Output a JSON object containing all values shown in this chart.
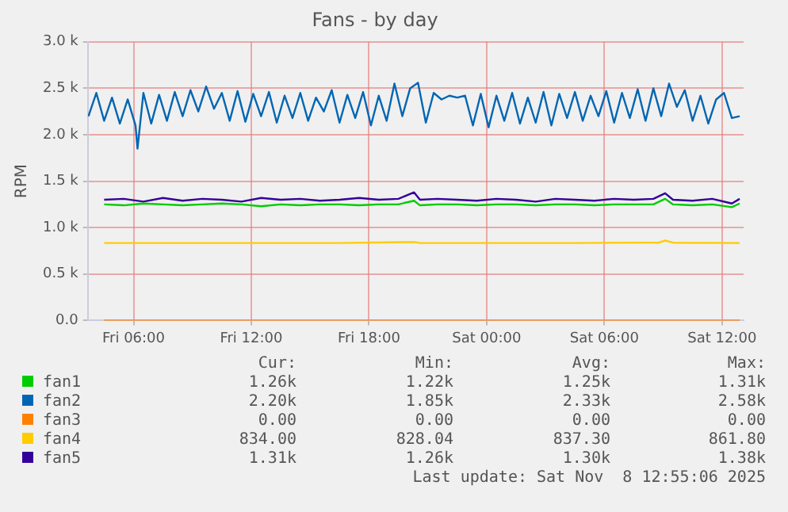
{
  "chart_data": {
    "type": "line",
    "title": "Fans - by day",
    "ylabel": "RPM",
    "xlim": [
      "2025-11-07T03:40",
      "2025-11-08T13:06"
    ],
    "xticks": [
      {
        "value": "2025-11-07T06:00",
        "label": "Fri 06:00"
      },
      {
        "value": "2025-11-07T12:00",
        "label": "Fri 12:00"
      },
      {
        "value": "2025-11-07T18:00",
        "label": "Fri 18:00"
      },
      {
        "value": "2025-11-08T00:00",
        "label": "Sat 00:00"
      },
      {
        "value": "2025-11-08T06:00",
        "label": "Sat 06:00"
      },
      {
        "value": "2025-11-08T12:00",
        "label": "Sat 12:00"
      }
    ],
    "ylim": [
      0,
      3000
    ],
    "yticks": [
      {
        "value": 0,
        "label": "0.0"
      },
      {
        "value": 500,
        "label": "0.5 k"
      },
      {
        "value": 1000,
        "label": "1.0 k"
      },
      {
        "value": 1500,
        "label": "1.5 k"
      },
      {
        "value": 2000,
        "label": "2.0 k"
      },
      {
        "value": 2500,
        "label": "2.5 k"
      },
      {
        "value": 3000,
        "label": "3.0 k"
      }
    ],
    "grid": true,
    "legend": "bottom",
    "line_style": "solid",
    "x": [
      "2025-11-07T04:30",
      "2025-11-07T05:30",
      "2025-11-07T06:30",
      "2025-11-07T07:30",
      "2025-11-07T08:30",
      "2025-11-07T09:30",
      "2025-11-07T10:30",
      "2025-11-07T11:30",
      "2025-11-07T12:30",
      "2025-11-07T13:30",
      "2025-11-07T14:30",
      "2025-11-07T15:30",
      "2025-11-07T16:30",
      "2025-11-07T17:30",
      "2025-11-07T18:30",
      "2025-11-07T19:30",
      "2025-11-07T20:18",
      "2025-11-07T20:36",
      "2025-11-07T21:30",
      "2025-11-07T22:30",
      "2025-11-07T23:30",
      "2025-11-08T00:30",
      "2025-11-08T01:30",
      "2025-11-08T02:30",
      "2025-11-08T03:30",
      "2025-11-08T04:30",
      "2025-11-08T05:30",
      "2025-11-08T06:30",
      "2025-11-08T07:30",
      "2025-11-08T08:30",
      "2025-11-08T09:06",
      "2025-11-08T09:30",
      "2025-11-08T10:30",
      "2025-11-08T11:30",
      "2025-11-08T12:30",
      "2025-11-08T12:54"
    ],
    "series": [
      {
        "name": "fan1",
        "color": "#00cc00",
        "values": [
          1250,
          1240,
          1260,
          1250,
          1240,
          1250,
          1260,
          1250,
          1230,
          1250,
          1240,
          1250,
          1250,
          1240,
          1250,
          1250,
          1290,
          1240,
          1250,
          1250,
          1240,
          1250,
          1250,
          1240,
          1250,
          1250,
          1240,
          1250,
          1250,
          1250,
          1310,
          1250,
          1240,
          1250,
          1220,
          1260
        ]
      },
      {
        "name": "fan2",
        "color": "#0066b3",
        "x": [
          "2025-11-07T03:42",
          "2025-11-07T04:06",
          "2025-11-07T04:30",
          "2025-11-07T04:54",
          "2025-11-07T05:18",
          "2025-11-07T05:42",
          "2025-11-07T06:06",
          "2025-11-07T06:12",
          "2025-11-07T06:30",
          "2025-11-07T06:54",
          "2025-11-07T07:18",
          "2025-11-07T07:42",
          "2025-11-07T08:06",
          "2025-11-07T08:30",
          "2025-11-07T08:54",
          "2025-11-07T09:18",
          "2025-11-07T09:42",
          "2025-11-07T10:06",
          "2025-11-07T10:30",
          "2025-11-07T10:54",
          "2025-11-07T11:18",
          "2025-11-07T11:42",
          "2025-11-07T12:06",
          "2025-11-07T12:30",
          "2025-11-07T12:54",
          "2025-11-07T13:18",
          "2025-11-07T13:42",
          "2025-11-07T14:06",
          "2025-11-07T14:30",
          "2025-11-07T14:54",
          "2025-11-07T15:18",
          "2025-11-07T15:42",
          "2025-11-07T16:06",
          "2025-11-07T16:30",
          "2025-11-07T16:54",
          "2025-11-07T17:18",
          "2025-11-07T17:42",
          "2025-11-07T18:06",
          "2025-11-07T18:30",
          "2025-11-07T18:54",
          "2025-11-07T19:18",
          "2025-11-07T19:42",
          "2025-11-07T20:06",
          "2025-11-07T20:30",
          "2025-11-07T20:54",
          "2025-11-07T21:18",
          "2025-11-07T21:42",
          "2025-11-07T22:06",
          "2025-11-07T22:30",
          "2025-11-07T22:54",
          "2025-11-07T23:18",
          "2025-11-07T23:42",
          "2025-11-08T00:06",
          "2025-11-08T00:30",
          "2025-11-08T00:54",
          "2025-11-08T01:18",
          "2025-11-08T01:42",
          "2025-11-08T02:06",
          "2025-11-08T02:30",
          "2025-11-08T02:54",
          "2025-11-08T03:18",
          "2025-11-08T03:42",
          "2025-11-08T04:06",
          "2025-11-08T04:30",
          "2025-11-08T04:54",
          "2025-11-08T05:18",
          "2025-11-08T05:42",
          "2025-11-08T06:06",
          "2025-11-08T06:30",
          "2025-11-08T06:54",
          "2025-11-08T07:18",
          "2025-11-08T07:42",
          "2025-11-08T08:06",
          "2025-11-08T08:30",
          "2025-11-08T08:54",
          "2025-11-08T09:18",
          "2025-11-08T09:42",
          "2025-11-08T10:06",
          "2025-11-08T10:30",
          "2025-11-08T10:54",
          "2025-11-08T11:18",
          "2025-11-08T11:42",
          "2025-11-08T12:06",
          "2025-11-08T12:30",
          "2025-11-08T12:54"
        ],
        "values": [
          2200,
          2450,
          2150,
          2400,
          2120,
          2380,
          2100,
          1850,
          2450,
          2120,
          2430,
          2150,
          2460,
          2200,
          2480,
          2250,
          2520,
          2280,
          2450,
          2150,
          2470,
          2140,
          2440,
          2200,
          2460,
          2130,
          2420,
          2180,
          2450,
          2150,
          2400,
          2250,
          2480,
          2130,
          2430,
          2180,
          2460,
          2100,
          2420,
          2150,
          2550,
          2200,
          2500,
          2560,
          2130,
          2450,
          2380,
          2420,
          2400,
          2420,
          2100,
          2440,
          2080,
          2420,
          2150,
          2450,
          2120,
          2400,
          2130,
          2460,
          2100,
          2440,
          2180,
          2460,
          2150,
          2420,
          2200,
          2470,
          2130,
          2450,
          2180,
          2490,
          2150,
          2500,
          2200,
          2550,
          2300,
          2480,
          2150,
          2420,
          2120,
          2380,
          2450,
          2180,
          2200
        ]
      },
      {
        "name": "fan3",
        "color": "#ff8000",
        "x": [
          "2025-11-07T04:30",
          "2025-11-08T12:54"
        ],
        "values": [
          0,
          0
        ]
      },
      {
        "name": "fan4",
        "color": "#ffcc00",
        "x": [
          "2025-11-07T04:30",
          "2025-11-07T08:30",
          "2025-11-07T12:30",
          "2025-11-07T16:30",
          "2025-11-07T20:18",
          "2025-11-07T20:36",
          "2025-11-08T00:30",
          "2025-11-08T04:30",
          "2025-11-08T08:48",
          "2025-11-08T09:06",
          "2025-11-08T09:30",
          "2025-11-08T12:54"
        ],
        "values": [
          834,
          834,
          834,
          834,
          845,
          834,
          834,
          834,
          840,
          861,
          838,
          834
        ]
      },
      {
        "name": "fan5",
        "color": "#330099",
        "values": [
          1300,
          1310,
          1280,
          1320,
          1290,
          1310,
          1300,
          1280,
          1320,
          1300,
          1310,
          1290,
          1300,
          1320,
          1300,
          1310,
          1380,
          1300,
          1310,
          1300,
          1290,
          1310,
          1300,
          1280,
          1310,
          1300,
          1290,
          1310,
          1300,
          1310,
          1370,
          1300,
          1290,
          1310,
          1260,
          1310
        ]
      }
    ],
    "annotations": [
      "Cur:",
      "Min:",
      "Avg:",
      "Max:",
      "1.26k",
      "1.22k",
      "1.25k",
      "1.31k",
      "2.20k",
      "1.85k",
      "2.33k",
      "2.58k",
      "0.00",
      "0.00",
      "0.00",
      "0.00",
      "834.00",
      "828.04",
      "837.30",
      "861.80",
      "1.31k",
      "1.26k",
      "1.30k",
      "1.38k",
      "Last update: Sat Nov  8 12:55:06 2025"
    ]
  }
}
